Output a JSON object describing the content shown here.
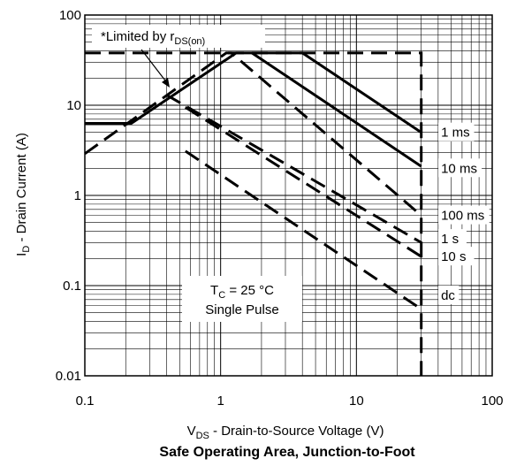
{
  "chart_data": {
    "type": "line",
    "title": "Safe Operating Area, Junction-to-Foot",
    "xlabel_main": "V",
    "xlabel_sub": "DS",
    "xlabel_rest": " - Drain-to-Source Voltage (V)",
    "ylabel_main": "I",
    "ylabel_sub": "D",
    "ylabel_rest": " - Drain Current (A)",
    "xscale": "log",
    "yscale": "log",
    "xlim": [
      0.1,
      100
    ],
    "ylim": [
      0.01,
      100
    ],
    "x_ticks": [
      {
        "value": 0.1,
        "label": "0.1"
      },
      {
        "value": 1,
        "label": "1"
      },
      {
        "value": 10,
        "label": "10"
      },
      {
        "value": 100,
        "label": "100"
      }
    ],
    "y_ticks": [
      {
        "value": 0.01,
        "label": "0.01"
      },
      {
        "value": 0.1,
        "label": "0.1"
      },
      {
        "value": 1,
        "label": "1"
      },
      {
        "value": 10,
        "label": "10"
      },
      {
        "value": 100,
        "label": "100"
      }
    ],
    "grid": true,
    "annotation_limited": {
      "prefix": "*Limited by r",
      "sub": "DS(on)"
    },
    "annotation_conditions": {
      "line1_main": "T",
      "line1_sub": "C",
      "line1_rest": " = 25 °C",
      "line2": "Single Pulse"
    },
    "series": [
      {
        "name": "1 ms",
        "style": "solid",
        "points": [
          [
            0.1,
            6.3
          ],
          [
            0.22,
            6.3
          ],
          [
            1.3,
            38
          ],
          [
            4.0,
            38
          ],
          [
            30,
            5.0
          ]
        ]
      },
      {
        "name": "10 ms",
        "style": "solid",
        "points": [
          [
            1.7,
            38
          ],
          [
            30,
            2.1
          ]
        ]
      },
      {
        "name": "100 ms",
        "style": "dashed",
        "points": [
          [
            0.1,
            2.9
          ],
          [
            1.1,
            38
          ],
          [
            1.2,
            38
          ],
          [
            30,
            0.6
          ]
        ]
      },
      {
        "name": "1 s",
        "style": "dashed",
        "points": [
          [
            0.4,
            13
          ],
          [
            30,
            0.3
          ]
        ]
      },
      {
        "name": "10 s",
        "style": "dashed",
        "points": [
          [
            0.55,
            9.5
          ],
          [
            30,
            0.21
          ]
        ]
      },
      {
        "name": "dc",
        "style": "dashed",
        "points": [
          [
            0.55,
            3.1
          ],
          [
            30,
            0.055
          ]
        ]
      },
      {
        "name": "limit",
        "style": "dashed",
        "points": [
          [
            0.1,
            38
          ],
          [
            30,
            38
          ],
          [
            30,
            0.01
          ]
        ]
      }
    ],
    "labels": [
      {
        "text": "1 ms",
        "x": 42,
        "y": 5.0
      },
      {
        "text": "10 ms",
        "x": 42,
        "y": 2.0
      },
      {
        "text": "100 ms",
        "x": 42,
        "y": 0.6
      },
      {
        "text": "1 s",
        "x": 42,
        "y": 0.33
      },
      {
        "text": "10 s",
        "x": 42,
        "y": 0.21
      },
      {
        "text": "dc",
        "x": 42,
        "y": 0.078
      }
    ]
  }
}
